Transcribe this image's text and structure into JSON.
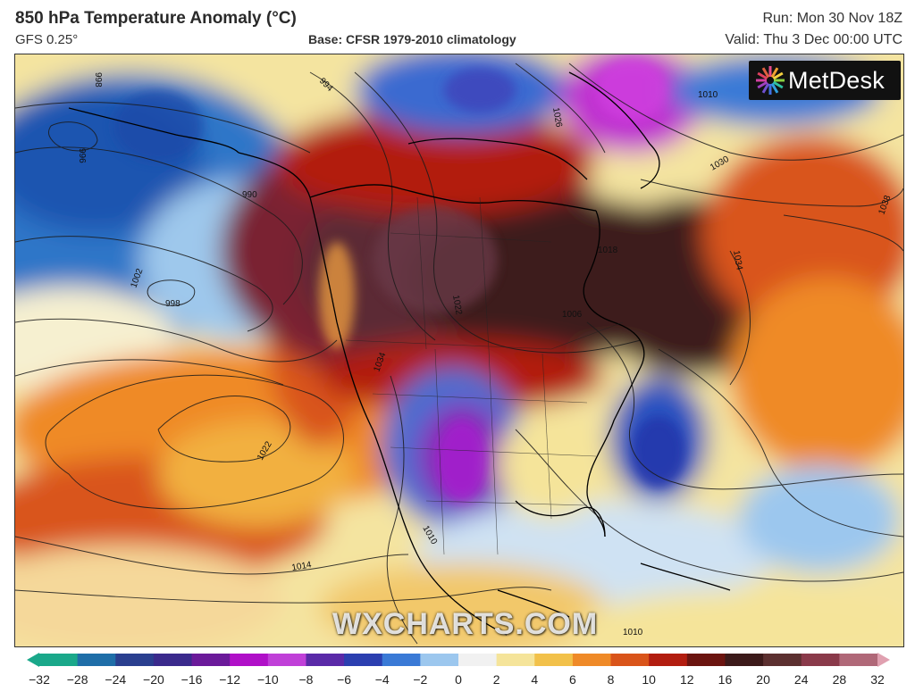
{
  "header": {
    "title": "850 hPa Temperature Anomaly (°C)",
    "model": "GFS 0.25°",
    "base": "Base: CFSR 1979-2010 climatology",
    "run": "Run: Mon 30 Nov 18Z",
    "valid": "Valid: Thu 3 Dec 00:00 UTC"
  },
  "logo": {
    "text": "MetDesk",
    "icon": "metdesk-starburst-icon"
  },
  "watermark": "WXCHARTS.COM",
  "isobar_labels": [
    "998",
    "996",
    "990",
    "1002",
    "998",
    "1022",
    "1014",
    "1010",
    "1022",
    "1034",
    "1018",
    "1006",
    "1038",
    "1030",
    "1034",
    "1026",
    "1010",
    "1010",
    "994"
  ],
  "colorbar": {
    "ticks": [
      "−32",
      "−28",
      "−24",
      "−20",
      "−16",
      "−12",
      "−10",
      "−8",
      "−6",
      "−4",
      "−2",
      "0",
      "2",
      "4",
      "6",
      "8",
      "10",
      "12",
      "16",
      "20",
      "24",
      "28",
      "32"
    ],
    "colors": [
      "#1aa88a",
      "#1f6ea8",
      "#2a3f8f",
      "#3a2a8c",
      "#6b1a9a",
      "#b010c8",
      "#c040d8",
      "#5a2aa8",
      "#2b3fb0",
      "#3a7ad6",
      "#9cc7ee",
      "#f1f1f1",
      "#f5e49a",
      "#f2c14a",
      "#ef8a28",
      "#d9541a",
      "#b21d10",
      "#6b1410",
      "#3c1a1a",
      "#5c3030",
      "#8a3a4a",
      "#b06878",
      "#e0a0b0"
    ]
  }
}
